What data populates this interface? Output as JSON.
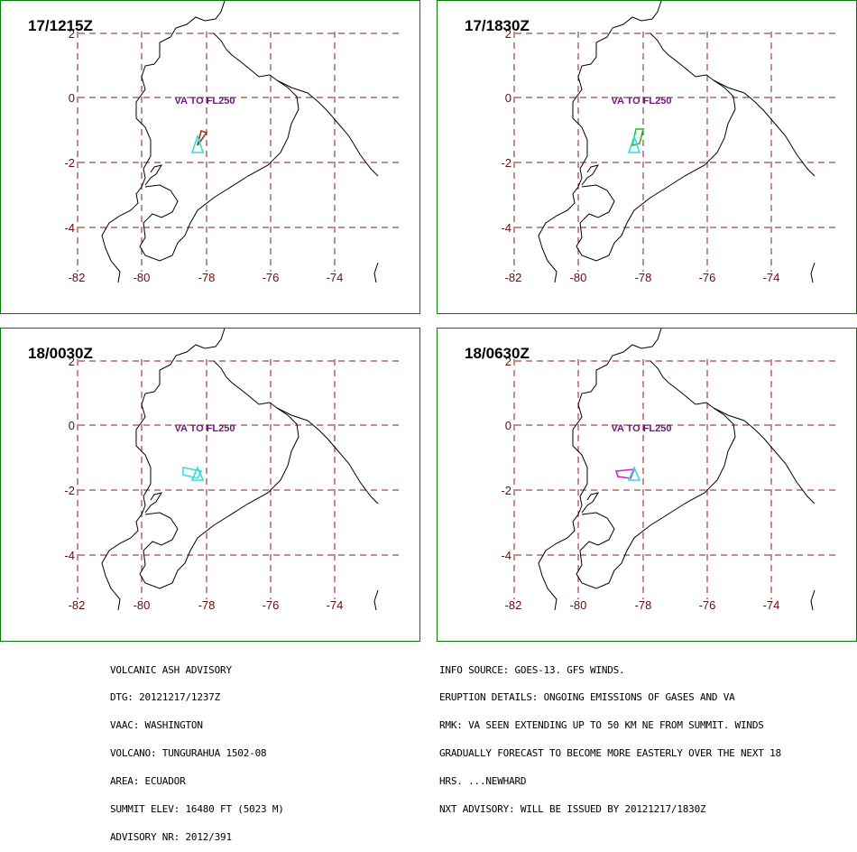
{
  "panels": [
    {
      "title": "17/1215Z",
      "va_label": "VA TO FL250",
      "ash": [
        {
          "color": "#8b3a1a",
          "shape": "needle"
        },
        {
          "color": "#33dddd",
          "shape": "tri"
        }
      ]
    },
    {
      "title": "17/1830Z",
      "va_label": "VA TO FL250",
      "ash": [
        {
          "color": "#22bb22",
          "shape": "needle"
        },
        {
          "color": "#33dddd",
          "shape": "tri"
        }
      ]
    },
    {
      "title": "18/0030Z",
      "va_label": "VA TO FL250",
      "ash": [
        {
          "color": "#33dddd",
          "shape": "wedge"
        },
        {
          "color": "#33dddd",
          "shape": "tri"
        }
      ]
    },
    {
      "title": "18/0630Z",
      "va_label": "VA TO FL250",
      "ash": [
        {
          "color": "#cc22cc",
          "shape": "wedge"
        },
        {
          "color": "#33dddd",
          "shape": "tri"
        }
      ]
    }
  ],
  "axes": {
    "lat_ticks": [
      "2",
      "0",
      "-2",
      "-4"
    ],
    "lon_ticks": [
      "-82",
      "-80",
      "-78",
      "-76",
      "-74"
    ]
  },
  "colors": {
    "grid": "#8b1a1a",
    "coast": "#000000",
    "frame": "#0a7a0a"
  },
  "advisory_left": [
    "VOLCANIC ASH ADVISORY",
    "DTG: 20121217/1237Z",
    "VAAC: WASHINGTON",
    "VOLCANO: TUNGURAHUA 1502-08",
    "AREA: ECUADOR",
    "SUMMIT ELEV: 16480 FT (5023 M)",
    "ADVISORY NR: 2012/391"
  ],
  "advisory_right": [
    "INFO SOURCE: GOES-13. GFS WINDS.",
    "ERUPTION DETAILS: ONGOING EMISSIONS OF GASES AND VA",
    "RMK: VA SEEN EXTENDING UP TO 50 KM NE FROM SUMMIT. WINDS",
    "GRADUALLY FORECAST TO BECOME MORE EASTERLY OVER THE NEXT 18",
    "HRS. ...NEWHARD",
    "NXT ADVISORY: WILL BE ISSUED BY 20121217/1830Z"
  ]
}
